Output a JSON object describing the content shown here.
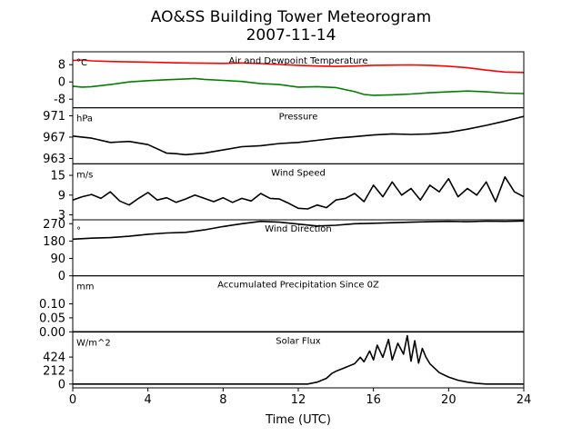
{
  "chart_data": {
    "type": "line",
    "title": "AO&SS Building Tower Meteorogram",
    "subtitle": "2007-11-14",
    "xlabel": "Time (UTC)",
    "x_ticks": [
      0,
      4,
      8,
      12,
      16,
      20,
      24
    ],
    "xlim": [
      0,
      24
    ],
    "grid": false,
    "panels": [
      {
        "id": "temp",
        "title": "Air and Dewpoint Temperature",
        "unit": "°C",
        "ylim": [
          -12,
          14
        ],
        "y_ticks": [
          -8,
          0,
          8
        ],
        "series": [
          {
            "color": "#ff0000",
            "x": [
              0,
              0.5,
              1,
              2,
              3,
              4,
              5,
              6,
              7,
              8,
              9,
              10,
              11,
              12,
              13,
              14,
              15,
              16,
              17,
              18,
              19,
              20,
              21,
              22,
              23,
              24
            ],
            "values": [
              10,
              10.2,
              9.8,
              9.5,
              9.3,
              9.2,
              9.0,
              8.8,
              8.7,
              8.6,
              8.8,
              8.5,
              8.1,
              7.7,
              7.4,
              7.2,
              7.4,
              7.7,
              7.8,
              7.9,
              7.7,
              7.3,
              6.6,
              5.5,
              4.6,
              4.4
            ]
          },
          {
            "color": "#008000",
            "x": [
              0,
              0.5,
              1,
              2,
              3,
              4,
              5,
              6,
              6.5,
              7,
              8,
              9,
              10,
              11,
              12,
              13,
              14,
              15,
              15.5,
              16,
              17,
              18,
              19,
              20,
              21,
              22,
              23,
              24
            ],
            "values": [
              -2,
              -2.4,
              -2.2,
              -1.2,
              0,
              0.6,
              1.0,
              1.4,
              1.6,
              1.2,
              0.7,
              0.2,
              -0.8,
              -1.2,
              -2.4,
              -2.2,
              -2.6,
              -4.5,
              -5.8,
              -6.2,
              -6.0,
              -5.6,
              -5.0,
              -4.6,
              -4.2,
              -4.6,
              -5.2,
              -5.4
            ]
          }
        ]
      },
      {
        "id": "pressure",
        "title": "Pressure",
        "unit": "hPa",
        "ylim": [
          962,
          972.5
        ],
        "y_ticks": [
          963,
          967,
          971
        ],
        "series": [
          {
            "color": "#000000",
            "x": [
              0,
              1,
              2,
              3,
              4,
              5,
              5.5,
              6,
              7,
              8,
              9,
              10,
              11,
              12,
              13,
              14,
              15,
              16,
              17,
              18,
              19,
              20,
              21,
              22,
              23,
              24
            ],
            "values": [
              967.2,
              966.8,
              966.0,
              966.2,
              965.6,
              964.0,
              963.9,
              963.7,
              964.0,
              964.6,
              965.2,
              965.4,
              965.8,
              966.0,
              966.4,
              966.8,
              967.1,
              967.4,
              967.6,
              967.5,
              967.6,
              967.9,
              968.5,
              969.2,
              970.0,
              970.9
            ]
          }
        ]
      },
      {
        "id": "wind-speed",
        "title": "Wind Speed",
        "unit": "m/s",
        "ylim": [
          1.5,
          18.5
        ],
        "y_ticks": [
          3,
          9,
          15
        ],
        "series": [
          {
            "color": "#000000",
            "x": [
              0,
              0.5,
              1,
              1.5,
              2,
              2.5,
              3,
              3.5,
              4,
              4.5,
              5,
              5.5,
              6,
              6.5,
              7,
              7.5,
              8,
              8.5,
              9,
              9.5,
              10,
              10.5,
              11,
              11.5,
              12,
              12.5,
              13,
              13.5,
              14,
              14.5,
              15,
              15.5,
              16,
              16.5,
              17,
              17.5,
              18,
              18.5,
              19,
              19.5,
              20,
              20.5,
              21,
              21.5,
              22,
              22.5,
              23,
              23.5,
              24
            ],
            "values": [
              7.5,
              8.5,
              9.2,
              8.0,
              10.0,
              7.2,
              6.0,
              8.0,
              9.8,
              7.5,
              8.2,
              6.8,
              7.8,
              9.0,
              8.0,
              7.0,
              8.2,
              6.8,
              8.0,
              7.2,
              9.5,
              8.0,
              7.8,
              6.5,
              5.0,
              4.8,
              6.0,
              5.2,
              7.5,
              8.0,
              9.5,
              7.0,
              12.0,
              8.5,
              13.0,
              9.0,
              11.0,
              7.5,
              12.0,
              10.0,
              14.0,
              8.5,
              11.0,
              9.0,
              13.0,
              7.0,
              14.5,
              10.0,
              8.5
            ]
          }
        ]
      },
      {
        "id": "wind-direction",
        "title": "Wind Direction",
        "unit": "°",
        "ylim": [
          0,
          290
        ],
        "y_ticks": [
          0,
          90,
          180,
          270
        ],
        "series": [
          {
            "color": "#000000",
            "x": [
              0,
              1,
              2,
              3,
              4,
              5,
              6,
              7,
              8,
              9,
              10,
              11,
              12,
              13,
              14,
              15,
              16,
              17,
              18,
              19,
              20,
              21,
              22,
              23,
              24
            ],
            "values": [
              190,
              195,
              198,
              205,
              215,
              222,
              225,
              238,
              255,
              270,
              282,
              278,
              268,
              258,
              262,
              270,
              272,
              275,
              278,
              280,
              282,
              280,
              283,
              282,
              284
            ]
          }
        ]
      },
      {
        "id": "precip",
        "title": "Accumulated Precipitation Since 0Z",
        "unit": "mm",
        "ylim": [
          0,
          0.2
        ],
        "y_ticks": [
          0.0,
          0.05,
          0.1
        ],
        "y_tick_labels": [
          "0.00",
          "0.05",
          "0.10"
        ],
        "series": [
          {
            "color": "#000000",
            "x": [
              0,
              24
            ],
            "values": [
              0,
              0
            ]
          }
        ]
      },
      {
        "id": "solar",
        "title": "Solar Flux",
        "unit": "W/m^2",
        "ylim": [
          -60,
          820
        ],
        "y_ticks": [
          0,
          212,
          424
        ],
        "series": [
          {
            "color": "#000000",
            "x": [
              0,
              12.5,
              13.0,
              13.5,
              13.8,
              14.0,
              14.5,
              15.0,
              15.3,
              15.5,
              15.8,
              16.0,
              16.2,
              16.5,
              16.8,
              17.0,
              17.3,
              17.6,
              17.8,
              18.0,
              18.2,
              18.4,
              18.6,
              18.8,
              19.0,
              19.5,
              20.0,
              20.5,
              21.0,
              21.5,
              22.0,
              24
            ],
            "values": [
              0,
              0,
              30,
              90,
              170,
              200,
              260,
              320,
              420,
              350,
              520,
              380,
              610,
              420,
              700,
              380,
              640,
              470,
              760,
              360,
              680,
              330,
              560,
              420,
              320,
              180,
              110,
              60,
              30,
              10,
              0,
              0
            ]
          }
        ]
      }
    ]
  }
}
